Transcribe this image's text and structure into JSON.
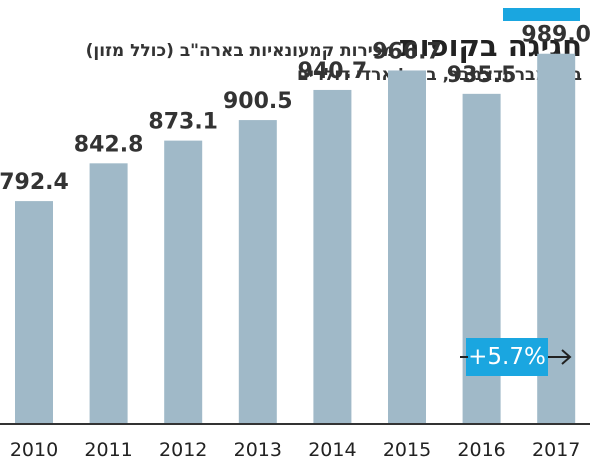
{
  "colors": {
    "bar": "#a0b9c8",
    "accent": "#1aa6e0",
    "baseline": "#333333",
    "badge": "#1aa6e0"
  },
  "header": {
    "title": "חגיגה בקופות",
    "subtitle": "מכירות קמעונאיות בארה\"ב (כולל מזון)",
    "subtitle2": "בנובמבר ודצמבר, במיליארדי דולרים"
  },
  "badge": {
    "label": "+5.7%",
    "icon": "arrow-right-icon"
  },
  "chart_data": {
    "type": "bar",
    "categories": [
      "2010",
      "2011",
      "2012",
      "2013",
      "2014",
      "2015",
      "2016",
      "2017"
    ],
    "values": [
      792.4,
      842.8,
      873.1,
      900.5,
      940.7,
      966.7,
      935.5,
      989.0
    ],
    "value_labels": [
      "792.4",
      "842.8",
      "873.1",
      "900.5",
      "940.7",
      "966.7",
      "935.5",
      "989.0"
    ],
    "title": "חגיגה בקופות",
    "xlabel": "",
    "ylabel": "",
    "grid": false,
    "legend": "none"
  }
}
